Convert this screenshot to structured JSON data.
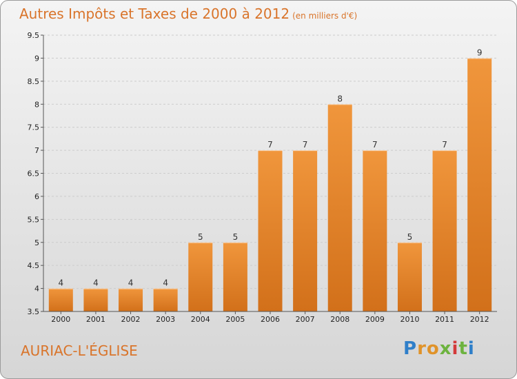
{
  "header": {
    "title": "Autres Impôts et Taxes de 2000 à 2012",
    "unit": "(en milliers d'€)"
  },
  "footer": {
    "commune": "AURIAC-L'ÉGLISE",
    "logo_letters": [
      "P",
      "r",
      "o",
      "x",
      "i",
      "t",
      "i"
    ]
  },
  "chart_data": {
    "type": "bar",
    "title": "Autres Impôts et Taxes de 2000 à 2012",
    "subtitle": "(en milliers d'€)",
    "categories": [
      "2000",
      "2001",
      "2002",
      "2003",
      "2004",
      "2005",
      "2006",
      "2007",
      "2008",
      "2009",
      "2010",
      "2011",
      "2012"
    ],
    "values": [
      4,
      4,
      4,
      4,
      5,
      5,
      7,
      7,
      8,
      7,
      5,
      7,
      9
    ],
    "data_labels": [
      "4",
      "4",
      "4",
      "4",
      "5",
      "5",
      "7",
      "7",
      "8",
      "7",
      "5",
      "7",
      "9"
    ],
    "ylim": [
      3.5,
      9.5
    ],
    "yticks": [
      "3.5",
      "4",
      "4.5",
      "5",
      "5.5",
      "6",
      "6.5",
      "7",
      "7.5",
      "8",
      "8.5",
      "9",
      "9.5"
    ],
    "grid": true,
    "colors": {
      "bar": "#f0963c",
      "bar_dark": "#d2701a",
      "grid": "#cccccc",
      "axis": "#555555"
    }
  }
}
